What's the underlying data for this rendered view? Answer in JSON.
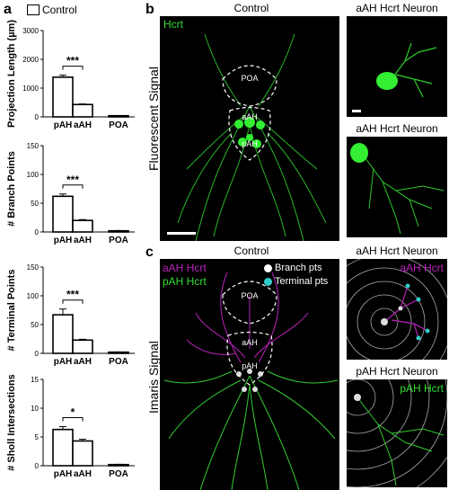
{
  "panels": {
    "a": "a",
    "b": "b",
    "c": "c"
  },
  "legend_a": "Control",
  "chart_data": [
    {
      "type": "bar",
      "categories": [
        "pAH",
        "aAH",
        "POA"
      ],
      "values": [
        1380,
        430,
        40
      ],
      "errors": [
        70,
        20,
        5
      ],
      "ylabel": "Projection Length (µm)",
      "ylim": [
        0,
        3000
      ],
      "yticks": [
        "0",
        "1000",
        "2000",
        "3000"
      ],
      "sig": "***",
      "sig_pair": [
        "pAH",
        "aAH"
      ]
    },
    {
      "type": "bar",
      "categories": [
        "pAH",
        "aAH",
        "POA"
      ],
      "values": [
        62,
        20,
        2
      ],
      "errors": [
        4,
        1.5,
        0.5
      ],
      "ylabel": "# Branch Points",
      "ylim": [
        0,
        150
      ],
      "yticks": [
        "0",
        "50",
        "100",
        "150"
      ],
      "sig": "***",
      "sig_pair": [
        "pAH",
        "aAH"
      ]
    },
    {
      "type": "bar",
      "categories": [
        "pAH",
        "aAH",
        "POA"
      ],
      "values": [
        67,
        23,
        2
      ],
      "errors": [
        10,
        1.5,
        0.5
      ],
      "ylabel": "# Terminal Points",
      "ylim": [
        0,
        150
      ],
      "yticks": [
        "0",
        "50",
        "100",
        "150"
      ],
      "sig": "***",
      "sig_pair": [
        "pAH",
        "aAH"
      ]
    },
    {
      "type": "bar",
      "categories": [
        "pAH",
        "aAH",
        "POA"
      ],
      "values": [
        6.3,
        4.3,
        0.2
      ],
      "errors": [
        0.5,
        0.3,
        0.05
      ],
      "ylabel": "# Sholl Intersections",
      "ylim": [
        0,
        15
      ],
      "yticks": [
        "0",
        "5",
        "10",
        "15"
      ],
      "sig": "*",
      "sig_pair": [
        "pAH",
        "aAH"
      ]
    }
  ],
  "panel_b": {
    "title": "Control",
    "side_label": "Fluorescent Signal",
    "channel": "Hcrt",
    "regions": [
      "POA",
      "aAH",
      "pAH"
    ],
    "inset_top": "aAH Hcrt Neuron",
    "inset_bottom": "aAH Hcrt Neuron"
  },
  "panel_c": {
    "title": "Control",
    "side_label": "Imaris Signal",
    "channel_magenta": "aAH Hcrt",
    "channel_green": "pAH Hcrt",
    "legend_branch": "Branch pts",
    "legend_terminal": "Terminal pts",
    "regions": [
      "POA",
      "aAH",
      "pAH"
    ],
    "inset_top": "aAH Hcrt Neuron",
    "inset_top_label": "aAH Hcrt",
    "inset_bottom": "pAH Hcrt Neuron",
    "inset_bottom_label": "pAH Hcrt"
  },
  "colors": {
    "green": "#33dd33",
    "magenta": "#bb22bb",
    "cyan": "#33cccc",
    "white": "#ffffff"
  }
}
